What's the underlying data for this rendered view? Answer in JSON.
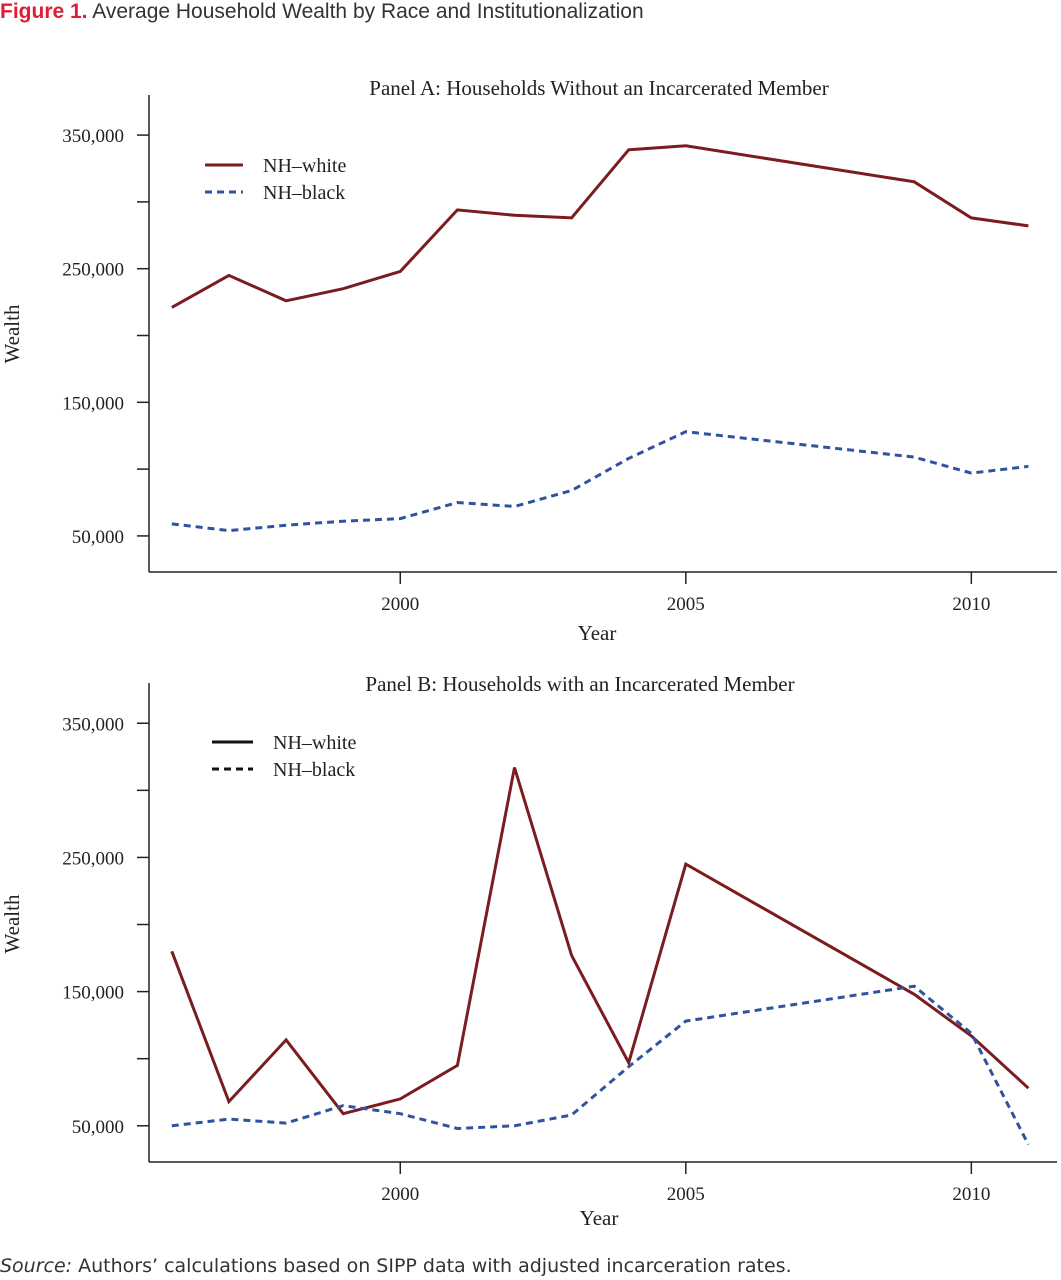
{
  "figure": {
    "label": "Figure 1.",
    "title": "Average Household Wealth by Race and Institutionalization"
  },
  "source": {
    "label": "Source:",
    "text": "Authors’ calculations based on SIPP data with adjusted incarceration rates."
  },
  "colors": {
    "white_series": "#7b1c1f",
    "black_series": "#2f53a0",
    "legend_b": "#111111",
    "axis": "#222222",
    "title_accent": "#e21b38"
  },
  "chart_data": [
    {
      "type": "line",
      "title": "Panel A: Households Without an Incarcerated Member",
      "xlabel": "Year",
      "ylabel": "Wealth",
      "xlim": [
        1995.6,
        2011.5
      ],
      "ylim": [
        23000,
        380000
      ],
      "xticks": [
        2000,
        2005,
        2010
      ],
      "yticks": [
        50000,
        100000,
        150000,
        200000,
        250000,
        300000,
        350000
      ],
      "ytick_labels": [
        "50,000",
        "",
        "150,000",
        "",
        "250,000",
        "",
        "350,000"
      ],
      "grid": false,
      "legend_position": "top-left",
      "x": [
        1996,
        1997,
        1998,
        1999,
        2000,
        2001,
        2002,
        2003,
        2004,
        2005,
        2009,
        2010,
        2011
      ],
      "series": [
        {
          "name": "NH–white",
          "style": "solid",
          "values": [
            221000,
            245000,
            226000,
            235000,
            248000,
            294000,
            290000,
            288000,
            339000,
            342000,
            315000,
            288000,
            282000
          ]
        },
        {
          "name": "NH–black",
          "style": "dashed",
          "values": [
            59000,
            54000,
            58000,
            61000,
            63000,
            75000,
            72000,
            84000,
            108000,
            128000,
            109000,
            97000,
            102000
          ]
        }
      ]
    },
    {
      "type": "line",
      "title": "Panel B: Households with an Incarcerated Member",
      "xlabel": "Year",
      "ylabel": "Wealth",
      "xlim": [
        1995.6,
        2011.5
      ],
      "ylim": [
        23000,
        380000
      ],
      "xticks": [
        2000,
        2005,
        2010
      ],
      "yticks": [
        50000,
        100000,
        150000,
        200000,
        250000,
        300000,
        350000
      ],
      "ytick_labels": [
        "50,000",
        "",
        "150,000",
        "",
        "250,000",
        "",
        "350,000"
      ],
      "grid": false,
      "legend_position": "top-left",
      "x": [
        1996,
        1997,
        1998,
        1999,
        2000,
        2001,
        2002,
        2003,
        2004,
        2005,
        2009,
        2010,
        2011
      ],
      "series": [
        {
          "name": "NH–white",
          "style": "solid",
          "values": [
            180000,
            68000,
            114000,
            59000,
            70000,
            95000,
            317000,
            177000,
            97000,
            245000,
            148000,
            117000,
            78000
          ]
        },
        {
          "name": "NH–black",
          "style": "dashed",
          "values": [
            50000,
            55000,
            52000,
            65000,
            59000,
            48000,
            50000,
            58000,
            94000,
            128000,
            154000,
            119000,
            36000
          ]
        }
      ]
    }
  ]
}
